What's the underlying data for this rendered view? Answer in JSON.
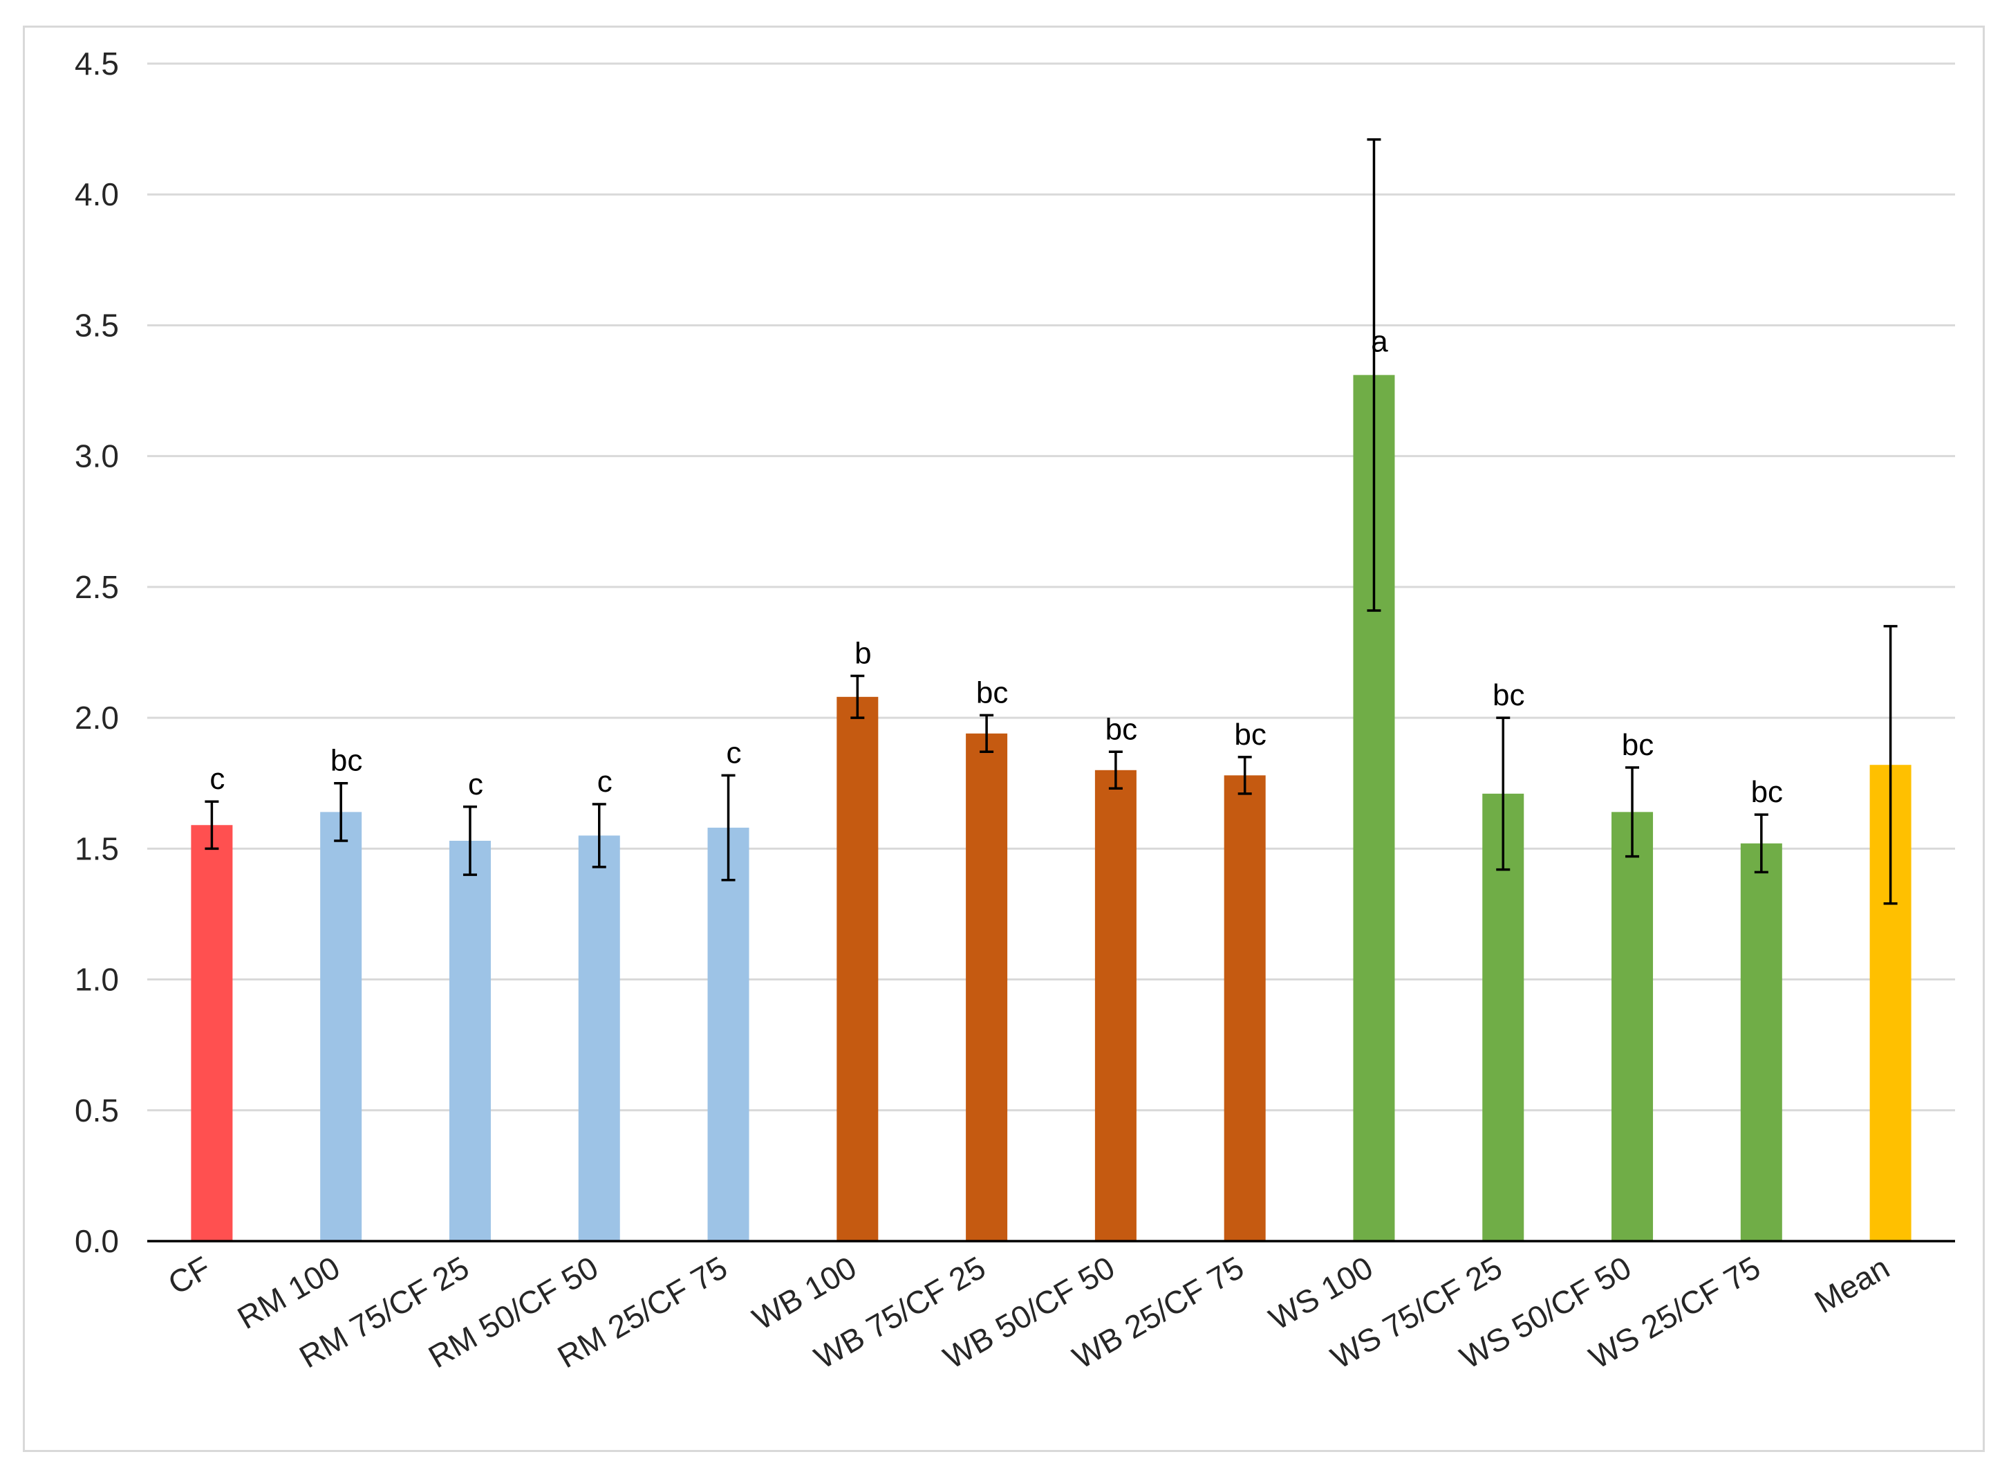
{
  "chart_data": {
    "type": "bar",
    "title": "",
    "xlabel": "",
    "ylabel": "",
    "ylim": [
      0,
      4.5
    ],
    "yticks": [
      "0.0",
      "0.5",
      "1.0",
      "1.5",
      "2.0",
      "2.5",
      "3.0",
      "3.5",
      "4.0",
      "4.5"
    ],
    "grid": true,
    "legend": "none",
    "categories": [
      "CF",
      "RM 100",
      "RM 75/CF 25",
      "RM 50/CF 50",
      "RM 25/CF 75",
      "WB 100",
      "WB 75/CF 25",
      "WB 50/CF 50",
      "WB 25/CF 75",
      "WS 100",
      "WS 75/CF 25",
      "WS 50/CF 50",
      "WS 25/CF 75",
      "Mean"
    ],
    "values": [
      1.59,
      1.64,
      1.53,
      1.55,
      1.58,
      2.08,
      1.94,
      1.8,
      1.78,
      3.31,
      1.71,
      1.64,
      1.52,
      1.82
    ],
    "errors": [
      0.09,
      0.11,
      0.13,
      0.12,
      0.2,
      0.08,
      0.07,
      0.07,
      0.07,
      0.9,
      0.29,
      0.17,
      0.11,
      0.53
    ],
    "significance": [
      "c",
      "bc",
      "c",
      "c",
      "c",
      "b",
      "bc",
      "bc",
      "bc",
      "a",
      "bc",
      "bc",
      "bc",
      ""
    ],
    "colors": [
      "#ff5050",
      "#9dc3e6",
      "#9dc3e6",
      "#9dc3e6",
      "#9dc3e6",
      "#c55a11",
      "#c55a11",
      "#c55a11",
      "#c55a11",
      "#70ad47",
      "#70ad47",
      "#70ad47",
      "#70ad47",
      "#ffc000"
    ],
    "gridline_color": "#d9d9d9",
    "axis_color": "#000000"
  }
}
